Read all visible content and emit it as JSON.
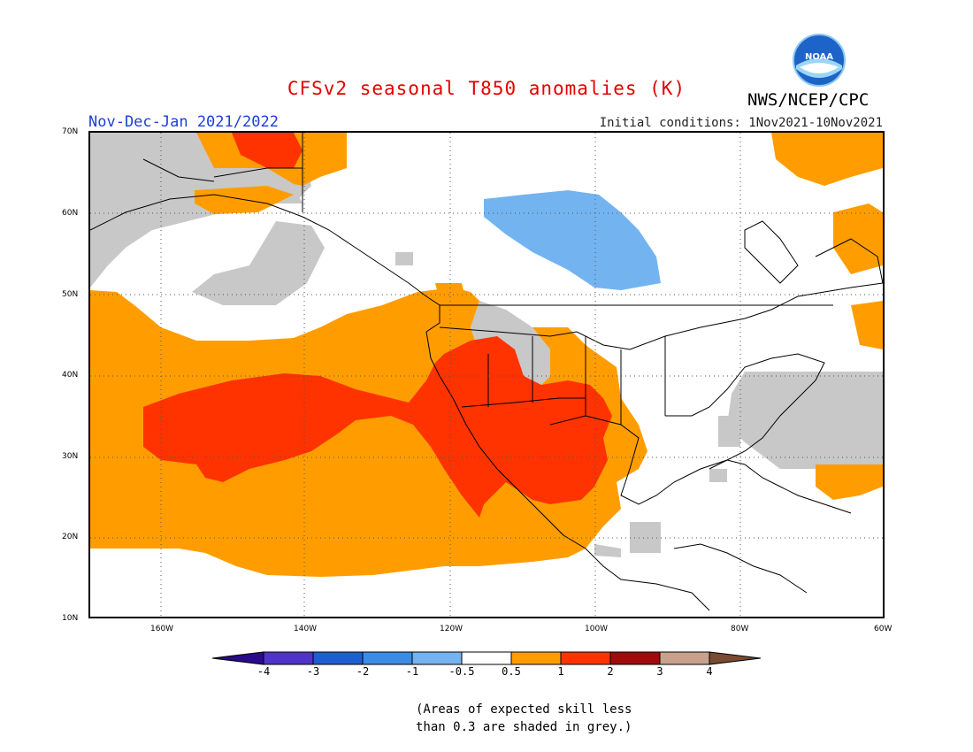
{
  "header": {
    "title": "CFSv2 seasonal T850 anomalies (K)",
    "agency": "NWS/NCEP/CPC",
    "period": "Nov-Dec-Jan 2021/2022",
    "initial_conditions": "Initial conditions: 1Nov2021-10Nov2021",
    "logo_text": "NOAA"
  },
  "map": {
    "lat_labels": [
      "70N",
      "60N",
      "50N",
      "40N",
      "30N",
      "20N",
      "10N"
    ],
    "lon_labels": [
      "160W",
      "140W",
      "120W",
      "100W",
      "80W",
      "60W"
    ],
    "colors": {
      "grey_low_skill": "#c8c8c8",
      "orange_0_5_to_1": "#ff9d00",
      "red_1_to_2": "#ff3300",
      "blue_neg_1_to_neg_0_5": "#73b4f0",
      "coastline": "#000000"
    }
  },
  "colorbar": {
    "labels": [
      "-4",
      "-3",
      "-2",
      "-1",
      "-0.5",
      "0.5",
      "1",
      "2",
      "3",
      "4"
    ],
    "colors": [
      "#2a0a8c",
      "#5033c8",
      "#1d5fd0",
      "#3c8ce6",
      "#73b4f0",
      "#ffffff",
      "#ff9d00",
      "#ff3300",
      "#a00a0a",
      "#c8a08c",
      "#7a4a32"
    ]
  },
  "note": {
    "line1": "(Areas of expected skill less",
    "line2": "than 0.3 are shaded in grey.)"
  }
}
